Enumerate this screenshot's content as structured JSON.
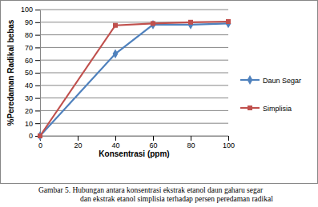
{
  "chart_data": {
    "type": "line",
    "x_label": "Konsentrasi (ppm)",
    "y_label": "%Peredaman Radikal bebas",
    "annotations": [
      "Gambar 5. Hubungan antara konsentrasi ekstrak etanol daun gaharu segar",
      "dan ekstrak etanol simplisia terhadap persen peredaman radikal"
    ],
    "x": [
      0,
      40,
      60,
      80,
      100
    ],
    "series": [
      {
        "name": "Daun Segar",
        "color": "#4f81bd",
        "marker": "diamond",
        "values": [
          0,
          65,
          88,
          88,
          89
        ]
      },
      {
        "name": "Simplisia",
        "color": "#c0504d",
        "marker": "square",
        "values": [
          0,
          87.5,
          89,
          90,
          90.5
        ]
      }
    ],
    "xlim": [
      0,
      100
    ],
    "xticks": [
      0,
      20,
      40,
      60,
      80,
      100
    ],
    "ylim": [
      0,
      100
    ],
    "yticks": [
      0,
      10,
      20,
      30,
      40,
      50,
      60,
      70,
      80,
      90,
      100
    ],
    "grid": true,
    "legend": "right"
  }
}
